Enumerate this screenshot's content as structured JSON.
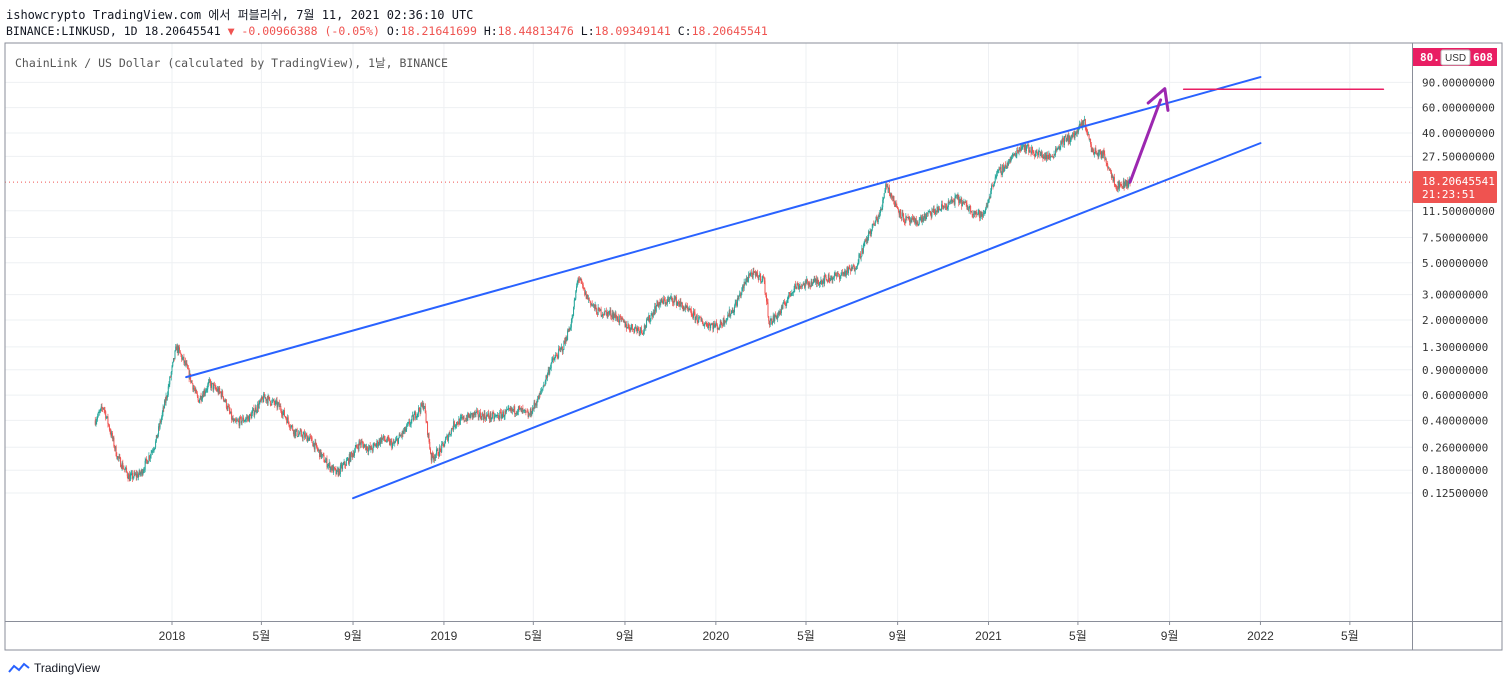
{
  "header": {
    "line1": "ishowcrypto TradingView.com 에서 퍼블리쉬, 7월 11, 2021 02:36:10 UTC",
    "symbol_line": "BINANCE:LINKUSD, 1D 18.20645541",
    "change": "▼ -0.00966388 (-0.05%)",
    "o_label": "O:",
    "o_value": "18.21641699",
    "h_label": "H:",
    "h_value": "18.44813476",
    "l_label": "L:",
    "l_value": "18.09349141",
    "c_label": "C:",
    "c_value": "18.20645541"
  },
  "footer": {
    "brand": "TradingView"
  },
  "colors": {
    "up": "#26a69a",
    "down": "#ef5350",
    "channel": "#2962ff",
    "arrow": "#9c27b0",
    "target": "#e91e63"
  },
  "chart_data": {
    "type": "candlestick",
    "title": "ChainLink / US Dollar (calculated by TradingView), 1날, BINANCE",
    "y_scale": "log",
    "currency_label": "USD",
    "last_price": "18.20645541",
    "countdown": "21:23:51",
    "target_price": "80.",
    "target_price_suffix": "608",
    "x_ticks": [
      {
        "label": "2018",
        "date": "2018-01-01"
      },
      {
        "label": "5월",
        "date": "2018-05-01"
      },
      {
        "label": "9월",
        "date": "2018-09-01"
      },
      {
        "label": "2019",
        "date": "2019-01-01"
      },
      {
        "label": "5월",
        "date": "2019-05-01"
      },
      {
        "label": "9월",
        "date": "2019-09-01"
      },
      {
        "label": "2020",
        "date": "2020-01-01"
      },
      {
        "label": "5월",
        "date": "2020-05-01"
      },
      {
        "label": "9월",
        "date": "2020-09-01"
      },
      {
        "label": "2021",
        "date": "2021-01-01"
      },
      {
        "label": "5월",
        "date": "2021-05-01"
      },
      {
        "label": "9월",
        "date": "2021-09-01"
      },
      {
        "label": "2022",
        "date": "2022-01-01"
      },
      {
        "label": "5월",
        "date": "2022-05-01"
      }
    ],
    "y_ticks": [
      {
        "label": "90.00000000",
        "value": 90
      },
      {
        "label": "60.00000000",
        "value": 60
      },
      {
        "label": "40.00000000",
        "value": 40
      },
      {
        "label": "27.50000000",
        "value": 27.5
      },
      {
        "label": "11.50000000",
        "value": 11.5
      },
      {
        "label": "7.50000000",
        "value": 7.5
      },
      {
        "label": "5.00000000",
        "value": 5
      },
      {
        "label": "3.00000000",
        "value": 3
      },
      {
        "label": "2.00000000",
        "value": 2
      },
      {
        "label": "1.30000000",
        "value": 1.3
      },
      {
        "label": "0.90000000",
        "value": 0.9
      },
      {
        "label": "0.60000000",
        "value": 0.6
      },
      {
        "label": "0.40000000",
        "value": 0.4
      },
      {
        "label": "0.26000000",
        "value": 0.26
      },
      {
        "label": "0.18000000",
        "value": 0.18
      },
      {
        "label": "0.12500000",
        "value": 0.125
      }
    ],
    "price_path": [
      [
        "2017-09-20",
        0.4
      ],
      [
        "2017-10-01",
        0.5
      ],
      [
        "2017-10-20",
        0.22
      ],
      [
        "2017-11-05",
        0.16
      ],
      [
        "2017-11-20",
        0.17
      ],
      [
        "2017-12-10",
        0.28
      ],
      [
        "2017-12-25",
        0.6
      ],
      [
        "2018-01-07",
        1.3
      ],
      [
        "2018-01-20",
        0.95
      ],
      [
        "2018-02-05",
        0.55
      ],
      [
        "2018-02-20",
        0.72
      ],
      [
        "2018-03-10",
        0.6
      ],
      [
        "2018-03-25",
        0.38
      ],
      [
        "2018-04-15",
        0.42
      ],
      [
        "2018-05-05",
        0.58
      ],
      [
        "2018-05-25",
        0.5
      ],
      [
        "2018-06-15",
        0.33
      ],
      [
        "2018-07-05",
        0.3
      ],
      [
        "2018-07-25",
        0.21
      ],
      [
        "2018-08-10",
        0.17
      ],
      [
        "2018-08-25",
        0.21
      ],
      [
        "2018-09-10",
        0.28
      ],
      [
        "2018-09-25",
        0.25
      ],
      [
        "2018-10-10",
        0.3
      ],
      [
        "2018-10-25",
        0.27
      ],
      [
        "2018-11-10",
        0.34
      ],
      [
        "2018-11-25",
        0.45
      ],
      [
        "2018-12-05",
        0.52
      ],
      [
        "2018-12-15",
        0.22
      ],
      [
        "2018-12-28",
        0.25
      ],
      [
        "2019-01-15",
        0.38
      ],
      [
        "2019-02-10",
        0.44
      ],
      [
        "2019-03-10",
        0.42
      ],
      [
        "2019-04-10",
        0.48
      ],
      [
        "2019-04-25",
        0.43
      ],
      [
        "2019-05-10",
        0.6
      ],
      [
        "2019-05-25",
        1.0
      ],
      [
        "2019-06-10",
        1.3
      ],
      [
        "2019-06-22",
        2.0
      ],
      [
        "2019-06-30",
        4.0
      ],
      [
        "2019-07-10",
        3.0
      ],
      [
        "2019-07-25",
        2.3
      ],
      [
        "2019-08-15",
        2.2
      ],
      [
        "2019-09-05",
        1.8
      ],
      [
        "2019-09-25",
        1.7
      ],
      [
        "2019-10-15",
        2.6
      ],
      [
        "2019-11-05",
        2.8
      ],
      [
        "2019-11-25",
        2.3
      ],
      [
        "2019-12-15",
        1.9
      ],
      [
        "2020-01-05",
        1.8
      ],
      [
        "2020-01-25",
        2.4
      ],
      [
        "2020-02-15",
        4.2
      ],
      [
        "2020-03-05",
        3.9
      ],
      [
        "2020-03-13",
        1.9
      ],
      [
        "2020-03-28",
        2.3
      ],
      [
        "2020-04-15",
        3.4
      ],
      [
        "2020-05-15",
        3.7
      ],
      [
        "2020-06-15",
        4.1
      ],
      [
        "2020-07-05",
        4.6
      ],
      [
        "2020-07-25",
        8.0
      ],
      [
        "2020-08-10",
        11.5
      ],
      [
        "2020-08-16",
        18.0
      ],
      [
        "2020-08-28",
        13.0
      ],
      [
        "2020-09-10",
        10.0
      ],
      [
        "2020-09-25",
        9.5
      ],
      [
        "2020-10-15",
        11.0
      ],
      [
        "2020-11-05",
        12.5
      ],
      [
        "2020-11-20",
        14.0
      ],
      [
        "2020-12-10",
        11.5
      ],
      [
        "2020-12-25",
        10.5
      ],
      [
        "2021-01-10",
        20.0
      ],
      [
        "2021-01-25",
        24.0
      ],
      [
        "2021-02-15",
        33.0
      ],
      [
        "2021-03-05",
        29.0
      ],
      [
        "2021-03-25",
        27.0
      ],
      [
        "2021-04-10",
        35.0
      ],
      [
        "2021-04-25",
        38.0
      ],
      [
        "2021-05-10",
        48.0
      ],
      [
        "2021-05-20",
        30.0
      ],
      [
        "2021-06-05",
        28.0
      ],
      [
        "2021-06-22",
        17.0
      ],
      [
        "2021-07-10",
        18.2
      ]
    ],
    "annotations": {
      "upper_channel": [
        [
          "2018-01-20",
          0.8
        ],
        [
          "2022-01-01",
          98.0
        ]
      ],
      "lower_channel": [
        [
          "2018-09-01",
          0.115
        ],
        [
          "2022-01-01",
          34.0
        ]
      ],
      "target_line": [
        [
          "2021-09-20",
          80.6
        ],
        [
          "2022-06-15",
          80.6
        ]
      ],
      "arrow": [
        [
          "2021-07-10",
          18.2
        ],
        [
          "2021-08-20",
          68.0
        ]
      ]
    }
  }
}
